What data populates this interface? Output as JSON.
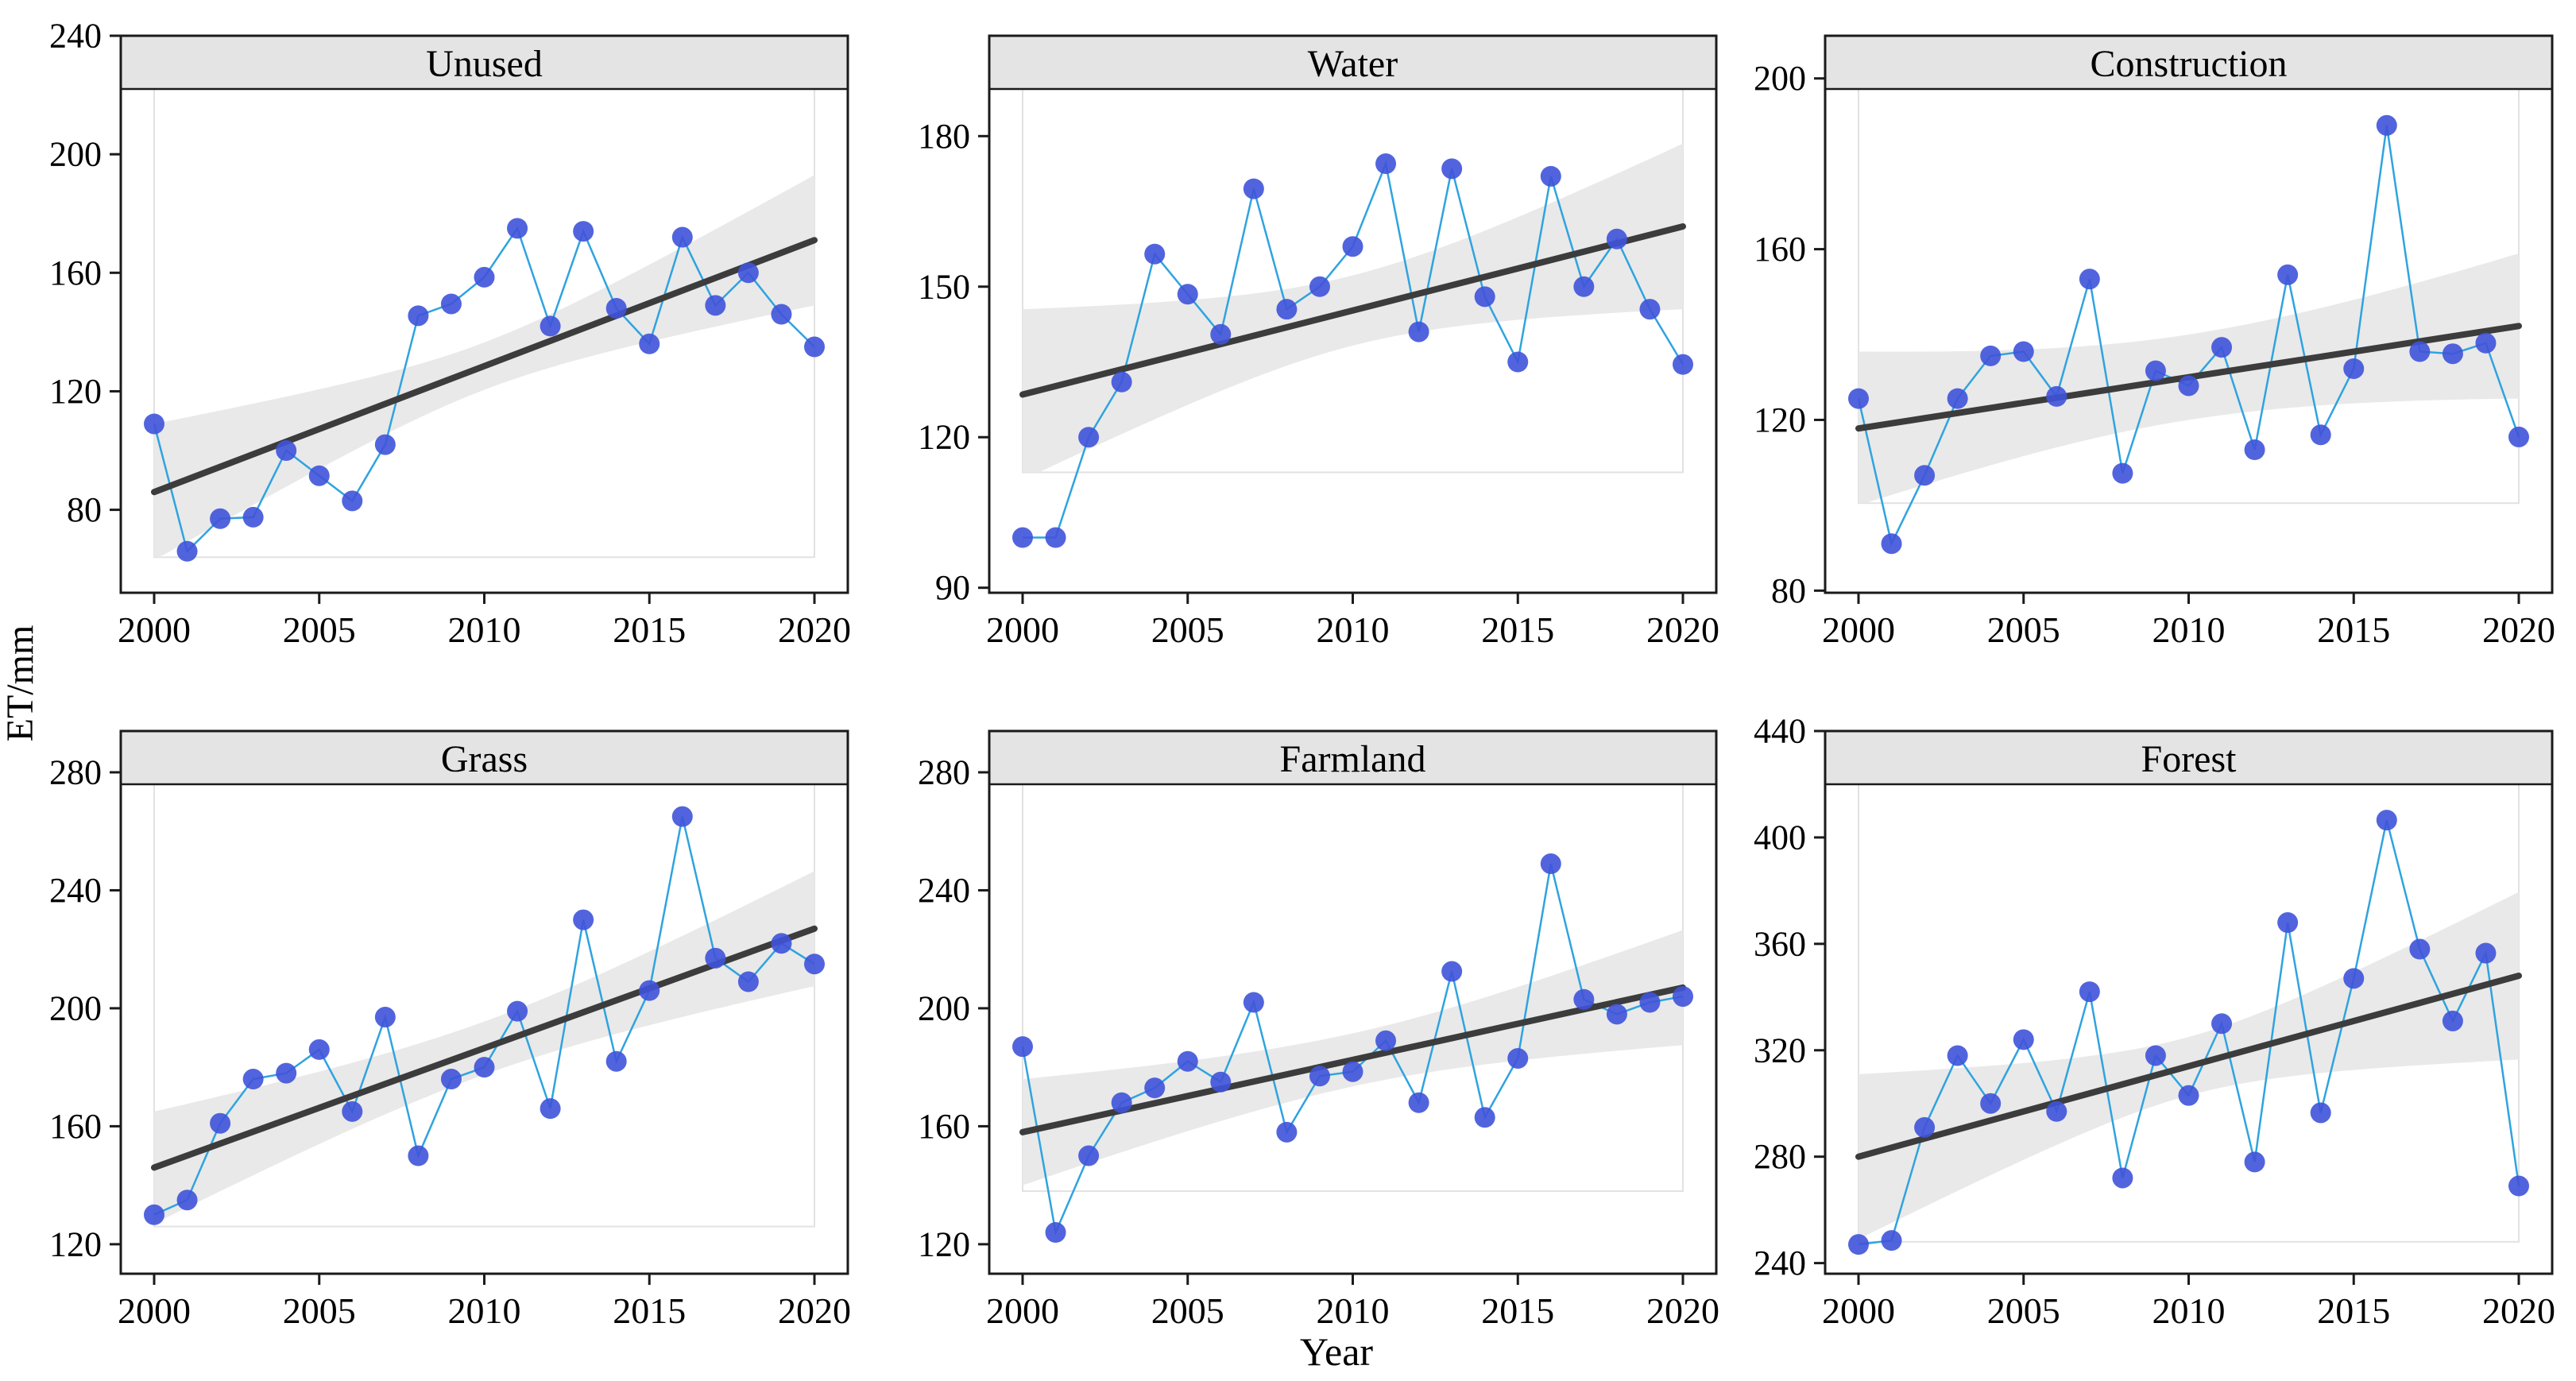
{
  "figure": {
    "ylabel": "ET/mm",
    "xlabel": "Year",
    "x_ticks": [
      2000,
      2005,
      2010,
      2015,
      2020
    ],
    "x_range": [
      2000,
      2020
    ],
    "colors": {
      "point": "#3f53d9",
      "series_line": "#2fa3e0",
      "trend_line": "#3c3c3c",
      "band_fill": "#e9e9e9",
      "inner_rect_border": "#e2e2e2",
      "strip_bg": "#e4e4e4",
      "panel_border": "#1a1a1a",
      "text": "#000000"
    }
  },
  "years": [
    2000,
    2001,
    2002,
    2003,
    2004,
    2005,
    2006,
    2007,
    2008,
    2009,
    2010,
    2011,
    2012,
    2013,
    2014,
    2015,
    2016,
    2017,
    2018,
    2019,
    2020
  ],
  "chart_data": [
    {
      "type": "scatter",
      "title": "Unused",
      "ylim": [
        52,
        240
      ],
      "yticks": [
        80,
        120,
        160,
        200,
        240
      ],
      "values": [
        109,
        66,
        77,
        77.5,
        100,
        91.5,
        83,
        102,
        145.5,
        149.5,
        158.5,
        175,
        142,
        174,
        148,
        136,
        172,
        149,
        160,
        146,
        135
      ],
      "trend": {
        "y_start": 86,
        "y_end": 171
      },
      "band": {
        "half_start": 23,
        "half_mid": 8,
        "half_end": 22,
        "floor": 64
      }
    },
    {
      "type": "scatter",
      "title": "Water",
      "ylim": [
        89,
        200
      ],
      "yticks": [
        90,
        120,
        150,
        180
      ],
      "values": [
        100,
        100,
        120,
        131,
        156.5,
        148.5,
        140.5,
        169.5,
        145.5,
        150,
        158,
        174.5,
        141,
        173.5,
        148,
        135,
        172,
        150,
        159.5,
        145.5,
        134.5
      ],
      "trend": {
        "y_start": 128.5,
        "y_end": 162
      },
      "band": {
        "half_start": 17,
        "half_mid": 7,
        "half_end": 16.5,
        "floor": 113
      }
    },
    {
      "type": "scatter",
      "title": "Construction",
      "ylim": [
        79.5,
        210
      ],
      "yticks": [
        80,
        120,
        160,
        200
      ],
      "values": [
        125,
        91,
        107,
        125,
        135,
        136,
        125.5,
        153,
        107.5,
        131.5,
        128,
        137,
        113,
        154,
        116.5,
        132,
        189,
        136,
        135.5,
        138,
        116
      ],
      "trend": {
        "y_start": 118,
        "y_end": 142
      },
      "band": {
        "half_start": 18,
        "half_mid": 10,
        "half_end": 17,
        "floor": 100.5
      }
    },
    {
      "type": "scatter",
      "title": "Grass",
      "ylim": [
        110,
        294
      ],
      "yticks": [
        120,
        160,
        200,
        240,
        280
      ],
      "values": [
        130,
        135,
        161,
        176,
        178,
        186,
        165,
        197,
        150,
        176,
        180,
        199,
        166,
        230,
        182,
        206,
        265,
        217,
        209,
        222,
        215
      ],
      "trend": {
        "y_start": 146,
        "y_end": 227
      },
      "band": {
        "half_start": 19,
        "half_mid": 9,
        "half_end": 19.5,
        "floor": 126
      }
    },
    {
      "type": "scatter",
      "title": "Farmland",
      "ylim": [
        110,
        294
      ],
      "yticks": [
        120,
        160,
        200,
        240,
        280
      ],
      "values": [
        187,
        124,
        150,
        168,
        173,
        182,
        175,
        202,
        158,
        177,
        178.5,
        189,
        168,
        212.5,
        163,
        183,
        249,
        203,
        198,
        202,
        204
      ],
      "trend": {
        "y_start": 158,
        "y_end": 207
      },
      "band": {
        "half_start": 18,
        "half_mid": 9,
        "half_end": 19.5,
        "floor": 138
      }
    },
    {
      "type": "scatter",
      "title": "Forest",
      "ylim": [
        236,
        440
      ],
      "yticks": [
        240,
        280,
        320,
        360,
        400,
        440
      ],
      "values": [
        247,
        248.5,
        291,
        318,
        300,
        324,
        297,
        342,
        272,
        318,
        303,
        330,
        278,
        368,
        296.5,
        347,
        406.5,
        358,
        331,
        356.5,
        269
      ],
      "trend": {
        "y_start": 280,
        "y_end": 348
      },
      "band": {
        "half_start": 31,
        "half_mid": 11,
        "half_end": 31.5,
        "floor": 248
      }
    }
  ]
}
